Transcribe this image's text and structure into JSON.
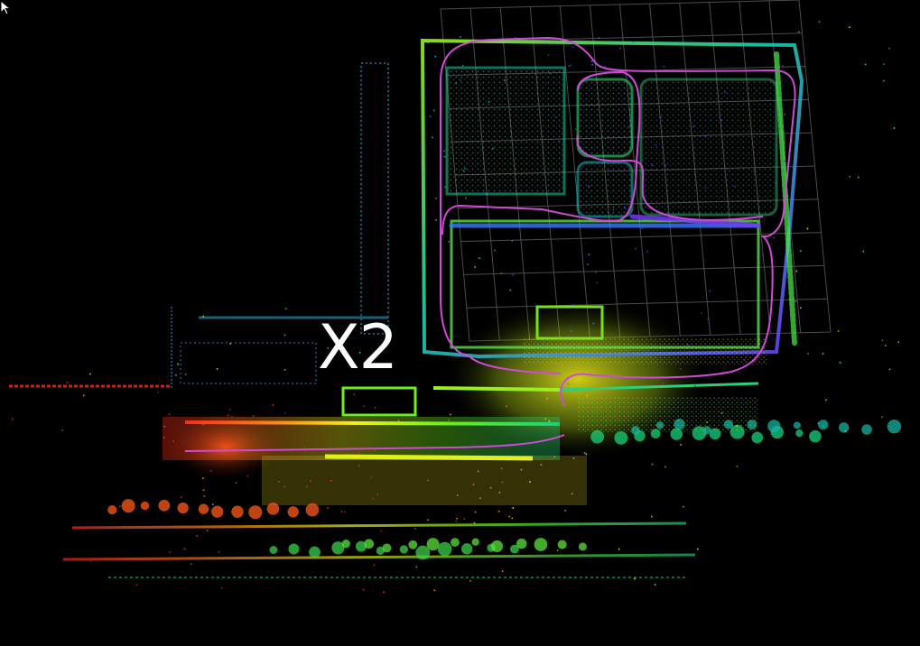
{
  "overlay": {
    "speed_label": "X2"
  },
  "scene": {
    "background": "#000000",
    "trajectory_color": "#d04ad8",
    "grid_color": "#8a8a8a",
    "intensity_colors": [
      "#ff2a1a",
      "#ff8a1a",
      "#f5f01a",
      "#9af01a",
      "#1af06a",
      "#1ad0e0",
      "#3a6aff",
      "#8a2aff"
    ]
  },
  "icons": {
    "cursor": "mouse-pointer-icon"
  }
}
